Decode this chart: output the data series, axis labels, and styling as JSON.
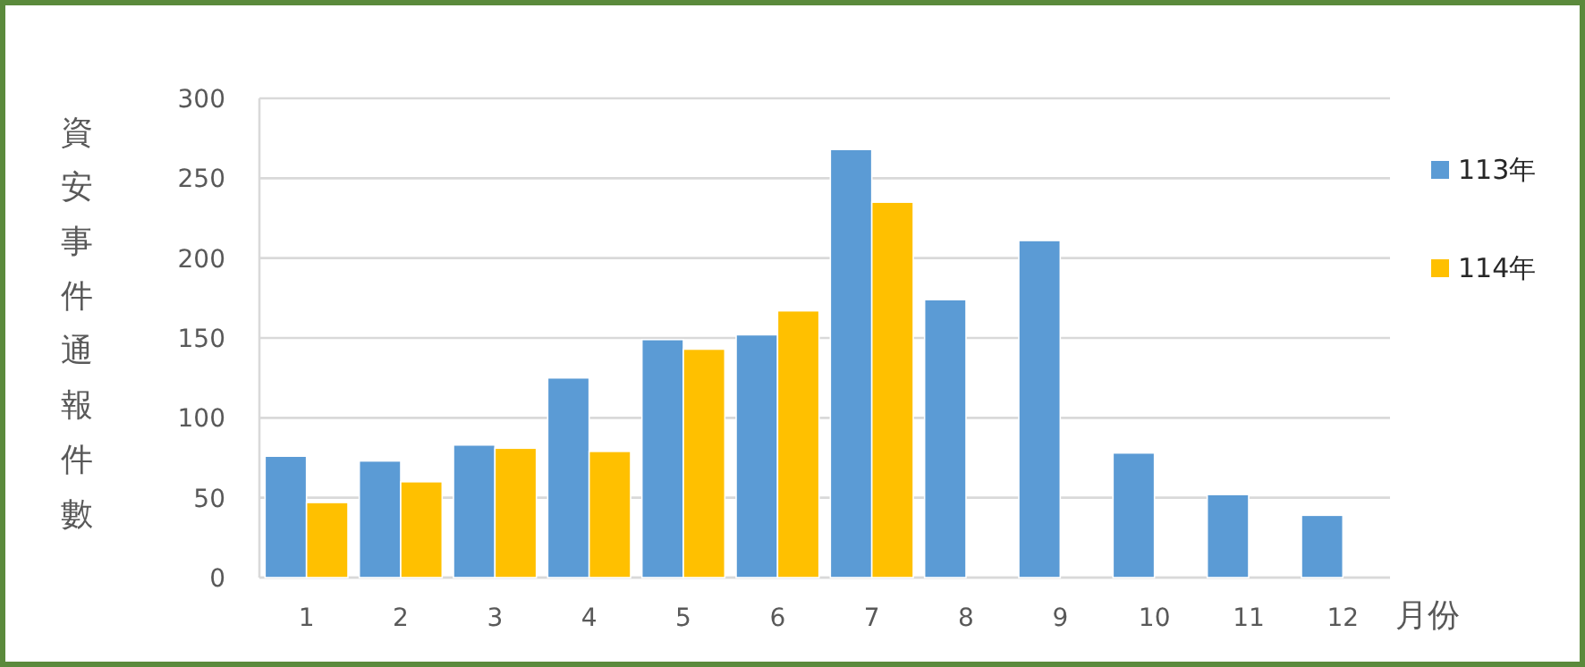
{
  "chart_data": {
    "type": "bar",
    "ylabel": "資安事件通報件數",
    "xlabel": "月份",
    "categories": [
      "1",
      "2",
      "3",
      "4",
      "5",
      "6",
      "7",
      "8",
      "9",
      "10",
      "11",
      "12"
    ],
    "series": [
      {
        "name": "113年",
        "color": "#5b9bd5",
        "values": [
          76,
          73,
          83,
          125,
          149,
          152,
          268,
          174,
          211,
          78,
          52,
          39
        ]
      },
      {
        "name": "114年",
        "color": "#ffc000",
        "values": [
          47,
          60,
          81,
          79,
          143,
          167,
          235,
          null,
          null,
          null,
          null,
          null
        ]
      }
    ],
    "ylim": [
      0,
      300
    ],
    "yticks": [
      0,
      50,
      100,
      150,
      200,
      250,
      300
    ],
    "grid": "y",
    "legend": "right"
  }
}
